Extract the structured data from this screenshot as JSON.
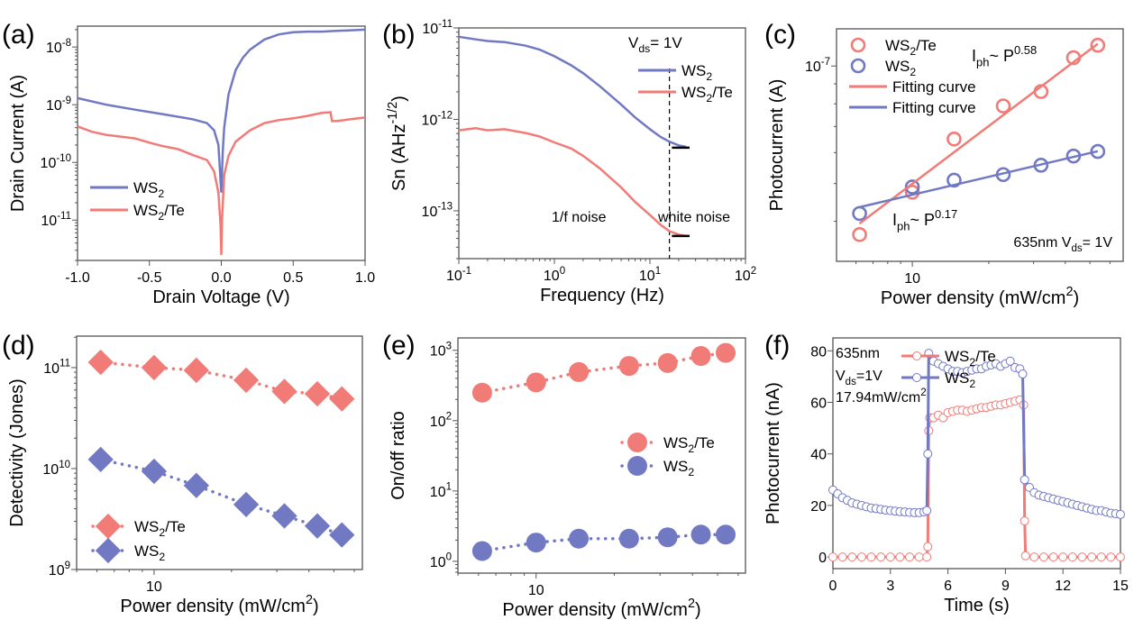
{
  "colors": {
    "blue": "#7179c2",
    "red": "#f07b77",
    "black": "#000000"
  },
  "chart_data": [
    {
      "panel": "(a)",
      "type": "line",
      "xlabel": "Drain Voltage (V)",
      "ylabel": "Drain Current (A)",
      "xscale": "linear",
      "yscale": "log",
      "xlim": [
        -1,
        1
      ],
      "ylim": [
        2e-12,
        2.3e-08
      ],
      "xticks": [
        -1,
        -0.5,
        0,
        0.5,
        1
      ],
      "xtick_labels": [
        "-1.0",
        "-0.5",
        "0.0",
        "0.5",
        "1.0"
      ],
      "yticks": [
        1e-11,
        1e-10,
        1e-09,
        1e-08
      ],
      "ytick_labels": [
        "10^{-11}",
        "10^{-10}",
        "10^{-9}",
        "10^{-8}"
      ],
      "legend": "bottom-left",
      "series": [
        {
          "name": "WS_{2}",
          "color": "#7179c2",
          "style": "line",
          "x": [
            -1,
            -0.8,
            -0.6,
            -0.4,
            -0.2,
            -0.1,
            -0.05,
            -0.02,
            0,
            0.01,
            0.02,
            0.05,
            0.1,
            0.15,
            0.2,
            0.3,
            0.4,
            0.5,
            0.6,
            0.7,
            0.8,
            0.9,
            1
          ],
          "y": [
            1.3e-09,
            1e-09,
            8.2e-10,
            6.8e-10,
            5.6e-10,
            4.8e-10,
            3.6e-10,
            2e-10,
            3e-11,
            1.5e-10,
            4e-10,
            1.5e-09,
            4e-09,
            6.5e-09,
            9e-09,
            1.35e-08,
            1.65e-08,
            1.8e-08,
            1.85e-08,
            1.85e-08,
            1.9e-08,
            1.95e-08,
            2e-08
          ]
        },
        {
          "name": "WS_{2}/Te",
          "color": "#f07b77",
          "style": "line",
          "x": [
            -1,
            -0.9,
            -0.8,
            -0.7,
            -0.6,
            -0.5,
            -0.4,
            -0.3,
            -0.2,
            -0.1,
            -0.05,
            -0.02,
            -0.005,
            0,
            0.005,
            0.02,
            0.05,
            0.1,
            0.2,
            0.3,
            0.4,
            0.5,
            0.6,
            0.7,
            0.76,
            0.77,
            0.8,
            0.9,
            1
          ],
          "y": [
            4.2e-10,
            3.4e-10,
            3e-10,
            2.8e-10,
            2.6e-10,
            2.2e-10,
            1.9e-10,
            1.7e-10,
            1.35e-10,
            1.1e-10,
            7e-11,
            3e-11,
            8e-12,
            2.5e-12,
            1e-11,
            6e-11,
            1.3e-10,
            2.3e-10,
            3.6e-10,
            4.8e-10,
            5.4e-10,
            5.8e-10,
            6.4e-10,
            7.2e-10,
            7.4e-10,
            5.2e-10,
            5.2e-10,
            5.6e-10,
            6e-10
          ]
        }
      ]
    },
    {
      "panel": "(b)",
      "type": "line",
      "xlabel": "Frequency (Hz)",
      "ylabel": "Sn (AHz^{-1/2})",
      "xscale": "log",
      "yscale": "log",
      "xlim": [
        0.1,
        100
      ],
      "ylim": [
        3e-14,
        1e-11
      ],
      "xticks": [
        0.1,
        1,
        10,
        100
      ],
      "xtick_labels": [
        "10^{-1}",
        "10^{0}",
        "10^{1}",
        "10^{2}"
      ],
      "yticks": [
        1e-13,
        1e-12,
        1e-11
      ],
      "ytick_labels": [
        "10^{-13}",
        "10^{-12}",
        "10^{-11}"
      ],
      "legend": "top-right",
      "legend_title": "V_{ds}= 1V",
      "vline": 16,
      "annotations": [
        "1/f noise",
        "white noise"
      ],
      "series": [
        {
          "name": "WS_{2}",
          "color": "#7179c2",
          "style": "line",
          "x": [
            0.1,
            0.15,
            0.2,
            0.3,
            0.5,
            0.7,
            1,
            1.5,
            2,
            3,
            5,
            7,
            10,
            13,
            16,
            20,
            24
          ],
          "y": [
            8e-12,
            7.5e-12,
            7.2e-12,
            7e-12,
            6.4e-12,
            5.8e-12,
            4.9e-12,
            3.9e-12,
            3.2e-12,
            2.3e-12,
            1.45e-12,
            1.05e-12,
            7.8e-13,
            6.4e-13,
            5.7e-13,
            5.2e-13,
            5e-13
          ]
        },
        {
          "name": "WS_{2}/Te",
          "color": "#f07b77",
          "style": "line",
          "x": [
            0.1,
            0.15,
            0.2,
            0.3,
            0.5,
            0.7,
            1,
            1.5,
            2,
            3,
            5,
            7,
            10,
            13,
            16,
            20,
            24
          ],
          "y": [
            7.6e-13,
            8e-13,
            7.6e-13,
            7.8e-13,
            7.1e-13,
            6.5e-13,
            5.6e-13,
            4.8e-13,
            4e-13,
            2.9e-13,
            1.8e-13,
            1.25e-13,
            9e-14,
            7e-14,
            6e-14,
            5.5e-14,
            5.3e-14
          ]
        },
        {
          "name": "",
          "color": "#000000",
          "style": "segment",
          "x": [
            17,
            26
          ],
          "y": [
            4.9e-13,
            4.9e-13
          ]
        },
        {
          "name": "",
          "color": "#000000",
          "style": "segment",
          "x": [
            17,
            26
          ],
          "y": [
            5.3e-14,
            5.3e-14
          ]
        }
      ]
    },
    {
      "panel": "(c)",
      "type": "scatter",
      "xlabel": "Power density (mW/cm^{2})",
      "ylabel": "Photocurrent (A)",
      "xscale": "log",
      "yscale": "log",
      "xlim": [
        5.03,
        67.6
      ],
      "ylim": [
        3.16e-08,
        1.245e-07
      ],
      "xticks": [
        10
      ],
      "xtick_labels": [
        "10"
      ],
      "yticks": [
        1e-07
      ],
      "ytick_labels": [
        "10^{-7}"
      ],
      "legend": "top-left",
      "annotations": [
        "I_{ph}~ P^{0.58}",
        "I_{ph}~ P^{0.17}",
        "635nm V_{ds}= 1V"
      ],
      "series": [
        {
          "name": "WS_{2}/Te",
          "color": "#f07b77",
          "style": "open-circle",
          "x": [
            6.2,
            10,
            14.6,
            22.8,
            32.1,
            43.1,
            53.7
          ],
          "y": [
            3.7e-08,
            4.75e-08,
            6.5e-08,
            7.9e-08,
            8.6e-08,
            1.05e-07,
            1.13e-07
          ]
        },
        {
          "name": "WS_{2}",
          "color": "#7179c2",
          "style": "open-circle",
          "x": [
            6.2,
            10,
            14.6,
            22.8,
            32.1,
            43.1,
            53.7
          ],
          "y": [
            4.19e-08,
            4.9e-08,
            5.1e-08,
            5.27e-08,
            5.57e-08,
            5.88e-08,
            6.04e-08
          ]
        },
        {
          "name": "Fitting curve",
          "color": "#f07b77",
          "style": "line",
          "x": [
            6.2,
            53.7
          ],
          "y": [
            3.95e-08,
            1.14e-07
          ]
        },
        {
          "name": "Fitting curve",
          "color": "#7179c2",
          "style": "line",
          "x": [
            6.2,
            53.7
          ],
          "y": [
            4.35e-08,
            6.05e-08
          ]
        }
      ]
    },
    {
      "panel": "(d)",
      "type": "scatter",
      "xlabel": "Power density (mW/cm^{2})",
      "ylabel": "Detectivity (Jones)",
      "xscale": "log",
      "yscale": "log",
      "xlim": [
        5.0,
        64.5
      ],
      "ylim": [
        1000000000.0,
        205000000000.0
      ],
      "xticks": [
        10
      ],
      "xtick_labels": [
        "10"
      ],
      "yticks": [
        1000000000.0,
        10000000000.0,
        100000000000.0
      ],
      "ytick_labels": [
        "10^{9}",
        "10^{10}",
        "10^{11}"
      ],
      "legend": "bottom-left",
      "series": [
        {
          "name": "WS_{2}/Te",
          "color": "#f07b77",
          "style": "diamond-dotted",
          "x": [
            6.2,
            10,
            14.6,
            22.8,
            32.1,
            43.1,
            53.7
          ],
          "y": [
            113000000000.0,
            100000000000.0,
            94000000000.0,
            75000000000.0,
            58000000000.0,
            55000000000.0,
            49000000000.0
          ]
        },
        {
          "name": "WS_{2}",
          "color": "#7179c2",
          "style": "diamond-dotted",
          "x": [
            6.2,
            10,
            14.6,
            22.8,
            32.1,
            43.1,
            53.7
          ],
          "y": [
            12300000000.0,
            9400000000.0,
            6800000000.0,
            4400000000.0,
            3400000000.0,
            2700000000.0,
            2200000000.0
          ]
        }
      ]
    },
    {
      "panel": "(e)",
      "type": "scatter",
      "xlabel": "Power density (mW/cm^{2})",
      "ylabel": "On/off ratio",
      "xscale": "log",
      "yscale": "log",
      "xlim": [
        5.0,
        64
      ],
      "ylim": [
        0.68,
        1500
      ],
      "xticks": [
        10
      ],
      "xtick_labels": [
        "10"
      ],
      "yticks": [
        1,
        10,
        100,
        1000
      ],
      "ytick_labels": [
        "10^{0}",
        "10^{1}",
        "10^{2}",
        "10^{3}"
      ],
      "legend": "center-right",
      "series": [
        {
          "name": "WS_{2}/Te",
          "color": "#f07b77",
          "style": "circle-dotted",
          "x": [
            6.2,
            10,
            14.6,
            22.8,
            32.1,
            43.1,
            53.7
          ],
          "y": [
            250,
            350,
            490,
            600,
            660,
            830,
            920
          ]
        },
        {
          "name": "WS_{2}",
          "color": "#7179c2",
          "style": "circle-dotted",
          "x": [
            6.2,
            10,
            14.6,
            22.8,
            32.1,
            43.1,
            53.7
          ],
          "y": [
            1.4,
            1.85,
            2.1,
            2.1,
            2.2,
            2.4,
            2.4
          ]
        }
      ]
    },
    {
      "panel": "(f)",
      "type": "line",
      "xlabel": "Time (s)",
      "ylabel": "Photocurrent (nA)",
      "xscale": "linear",
      "yscale": "linear",
      "xlim": [
        0,
        15
      ],
      "ylim": [
        -4.5,
        85
      ],
      "xticks": [
        0,
        3,
        6,
        9,
        12,
        15
      ],
      "xtick_labels": [
        "0",
        "3",
        "6",
        "9",
        "12",
        "15"
      ],
      "yticks": [
        0,
        20,
        40,
        60,
        80
      ],
      "ytick_labels": [
        "0",
        "20",
        "40",
        "60",
        "80"
      ],
      "legend": "top-right",
      "annotations": [
        "635nm",
        "V_{ds}=1V",
        "17.94mW/cm^{2}"
      ],
      "series": [
        {
          "name": "WS_{2}/Te",
          "color": "#f07b77",
          "style": "line-open-circle",
          "x": [
            0,
            0.5,
            1,
            1.5,
            2,
            2.5,
            3,
            3.5,
            4,
            4.5,
            4.9,
            4.95,
            5.0,
            5.05,
            5.25,
            5.5,
            5.75,
            6,
            6.25,
            6.5,
            6.75,
            7,
            7.25,
            7.5,
            7.75,
            8,
            8.25,
            8.5,
            8.75,
            9,
            9.25,
            9.5,
            9.75,
            9.95,
            10.0,
            10.05,
            10.5,
            11,
            11.5,
            12,
            12.5,
            13,
            13.5,
            14,
            14.5,
            15
          ],
          "y": [
            0,
            0,
            0,
            0,
            0,
            0,
            0,
            0,
            0,
            0,
            0,
            4,
            49,
            54,
            54,
            55,
            54,
            56,
            56.5,
            57,
            57,
            56.5,
            57,
            57.5,
            58,
            58,
            58.5,
            59,
            59,
            59.5,
            60,
            60.5,
            61,
            59,
            14,
            0.5,
            0,
            0,
            0,
            0,
            0,
            0,
            0,
            0,
            0,
            0
          ]
        },
        {
          "name": "WS_{2}",
          "color": "#7179c2",
          "style": "line-open-circle",
          "x": [
            0,
            0.25,
            0.5,
            0.75,
            1,
            1.25,
            1.5,
            1.75,
            2,
            2.25,
            2.5,
            2.75,
            3,
            3.25,
            3.5,
            3.75,
            4,
            4.25,
            4.5,
            4.75,
            4.9,
            4.95,
            5.0,
            5.25,
            5.5,
            5.75,
            6,
            6.25,
            6.5,
            6.75,
            7,
            7.25,
            7.5,
            7.75,
            8,
            8.25,
            8.5,
            8.75,
            9,
            9.25,
            9.5,
            9.75,
            9.9,
            10.0,
            10.25,
            10.5,
            10.75,
            11,
            11.25,
            11.5,
            11.75,
            12,
            12.25,
            12.5,
            12.75,
            13,
            13.25,
            13.5,
            13.75,
            14,
            14.25,
            14.5,
            14.75,
            15
          ],
          "y": [
            26,
            24.5,
            23,
            22,
            21,
            20.5,
            20,
            19.5,
            19,
            18.8,
            18.5,
            18.2,
            18,
            17.8,
            17.6,
            17.5,
            17.3,
            17.2,
            17.2,
            17.5,
            18,
            40,
            79,
            76,
            75,
            74,
            73,
            72,
            72,
            71.5,
            72,
            72.5,
            73,
            73,
            74,
            74.5,
            75,
            74,
            75,
            76,
            73.5,
            73,
            71,
            30,
            27,
            25,
            24,
            23.5,
            23,
            22.5,
            22,
            21.5,
            21,
            20.5,
            20,
            19.5,
            19,
            18.5,
            18,
            18,
            17.5,
            17,
            16.8,
            16.5
          ]
        }
      ]
    }
  ]
}
